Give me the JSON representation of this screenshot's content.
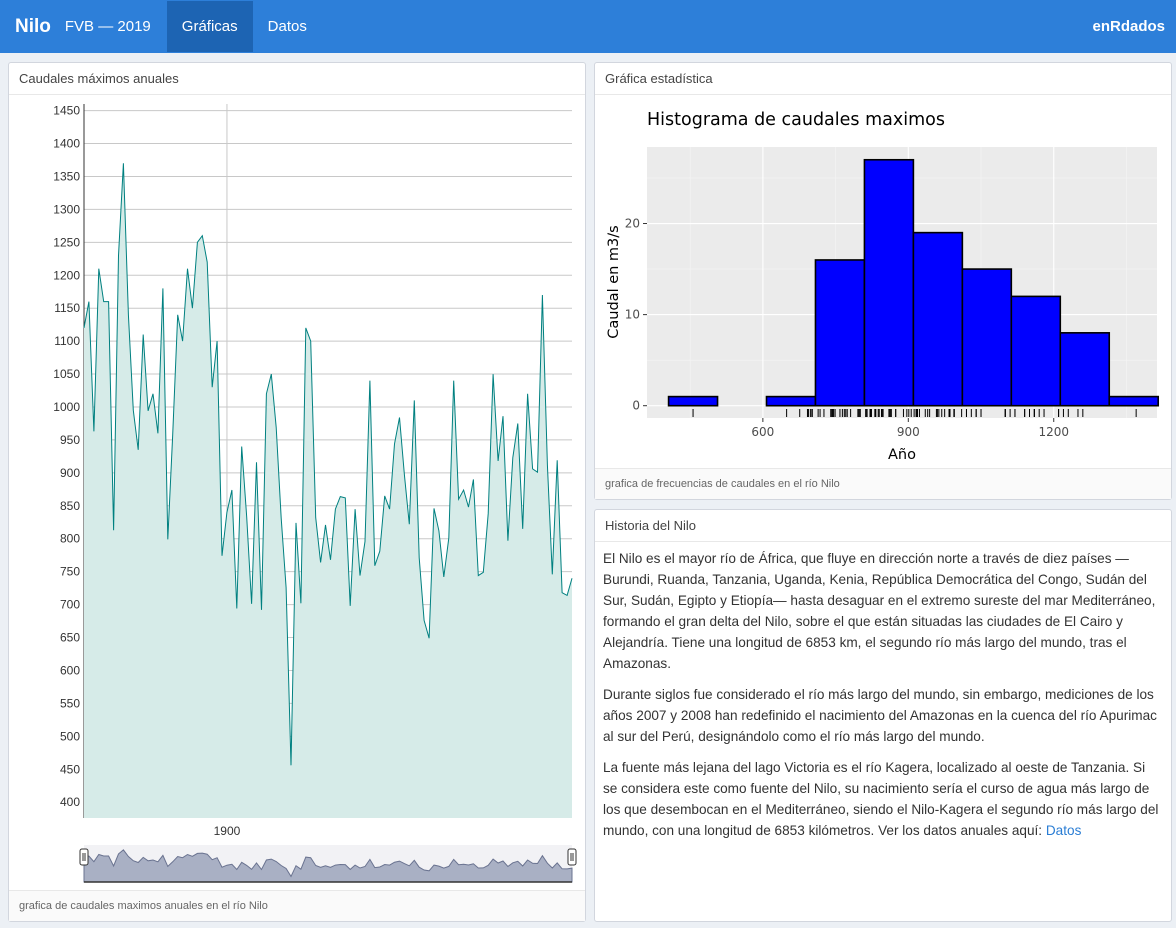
{
  "navbar": {
    "brand": "Nilo",
    "subtitle": "FVB — 2019",
    "tabs": [
      {
        "label": "Gráficas",
        "active": true
      },
      {
        "label": "Datos",
        "active": false
      }
    ],
    "right_label": "enRdados"
  },
  "left_box": {
    "title": "Caudales máximos anuales",
    "footer": "grafica de caudales maximos anuales en el río Nilo"
  },
  "hist_box": {
    "title": "Gráfica estadística",
    "footer": "grafica de frecuencias de caudales en el río Nilo"
  },
  "story_box": {
    "title": "Historia del Nilo",
    "paragraphs": [
      "El Nilo es el mayor río de África, que fluye en dirección norte a través de diez países — Burundi, Ruanda, Tanzania, Uganda, Kenia, República Democrática del Congo, Sudán del Sur, Sudán, Egipto y Etiopía— hasta desaguar en el extremo sureste del mar Mediterráneo, formando el gran delta del Nilo, sobre el que están situadas las ciudades de El Cairo y Alejandría. Tiene una longitud de 6853 km, el segundo río más largo del mundo, tras el Amazonas.",
      "Durante siglos fue considerado el río más largo del mundo, sin embargo, mediciones de los años 2007 y 2008 han redefinido el nacimiento del Amazonas en la cuenca del río Apurimac al sur del Perú, designándolo como el río más largo del mundo."
    ],
    "last_paragraph": "La fuente más lejana del lago Victoria es el río Kagera, localizado al oeste de Tanzania. Si se considera este como fuente del Nilo, su nacimiento sería el curso de agua más largo de los que desembocan en el Mediterráneo, siendo el Nilo-Kagera el segundo río más largo del mundo, con una longitud de 6853 kilómetros. Ver los datos anuales aquí: ",
    "link_label": "Datos"
  },
  "colors": {
    "navbar": "#2d7fd9",
    "line": "#008080",
    "area": "#d6ebe8",
    "bars": "#0000ff",
    "panel": "#ebebeb"
  },
  "chart_data": [
    {
      "type": "area",
      "ylim": [
        376,
        1460
      ],
      "y_ticks": [
        400,
        450,
        500,
        550,
        600,
        650,
        700,
        750,
        800,
        850,
        900,
        950,
        1000,
        1050,
        1100,
        1150,
        1200,
        1250,
        1300,
        1350,
        1400,
        1450
      ],
      "x_range": [
        1871,
        1970
      ],
      "x_tick_labels": [
        "1900"
      ],
      "x_tick_values": [
        1900
      ],
      "x": [
        1871,
        1872,
        1873,
        1874,
        1875,
        1876,
        1877,
        1878,
        1879,
        1880,
        1881,
        1882,
        1883,
        1884,
        1885,
        1886,
        1887,
        1888,
        1889,
        1890,
        1891,
        1892,
        1893,
        1894,
        1895,
        1896,
        1897,
        1898,
        1899,
        1900,
        1901,
        1902,
        1903,
        1904,
        1905,
        1906,
        1907,
        1908,
        1909,
        1910,
        1911,
        1912,
        1913,
        1914,
        1915,
        1916,
        1917,
        1918,
        1919,
        1920,
        1921,
        1922,
        1923,
        1924,
        1925,
        1926,
        1927,
        1928,
        1929,
        1930,
        1931,
        1932,
        1933,
        1934,
        1935,
        1936,
        1937,
        1938,
        1939,
        1940,
        1941,
        1942,
        1943,
        1944,
        1945,
        1946,
        1947,
        1948,
        1949,
        1950,
        1951,
        1952,
        1953,
        1954,
        1955,
        1956,
        1957,
        1958,
        1959,
        1960,
        1961,
        1962,
        1963,
        1964,
        1965,
        1966,
        1967,
        1968,
        1969,
        1970
      ],
      "values": [
        1120,
        1160,
        963,
        1210,
        1160,
        1160,
        813,
        1230,
        1370,
        1140,
        995,
        935,
        1110,
        994,
        1020,
        960,
        1180,
        799,
        958,
        1140,
        1100,
        1210,
        1150,
        1250,
        1260,
        1220,
        1030,
        1100,
        774,
        840,
        874,
        694,
        940,
        833,
        701,
        916,
        692,
        1020,
        1050,
        969,
        831,
        726,
        456,
        824,
        702,
        1120,
        1100,
        832,
        764,
        821,
        768,
        845,
        864,
        862,
        698,
        845,
        744,
        796,
        1040,
        759,
        781,
        865,
        845,
        944,
        984,
        897,
        822,
        1010,
        771,
        676,
        649,
        846,
        812,
        742,
        801,
        1040,
        860,
        874,
        848,
        890,
        744,
        749,
        838,
        1050,
        918,
        986,
        797,
        923,
        975,
        815,
        1020,
        906,
        901,
        1170,
        912,
        746,
        919,
        718,
        714,
        740
      ]
    },
    {
      "type": "bar",
      "title": "Histograma de caudales maximos",
      "xlabel": "Año",
      "ylabel": "Caudal en m3/s",
      "x_ticks": [
        600,
        900,
        1200
      ],
      "y_ticks": [
        0,
        10,
        20
      ],
      "xlim": [
        361,
        1413
      ],
      "ylim": [
        -1.35,
        28.4
      ],
      "bin_width": 101,
      "bin_centers": [
        456,
        557,
        658,
        759,
        860,
        961,
        1062,
        1163,
        1264,
        1365
      ],
      "values": [
        1,
        0,
        1,
        16,
        27,
        19,
        15,
        12,
        8,
        1
      ]
    }
  ]
}
